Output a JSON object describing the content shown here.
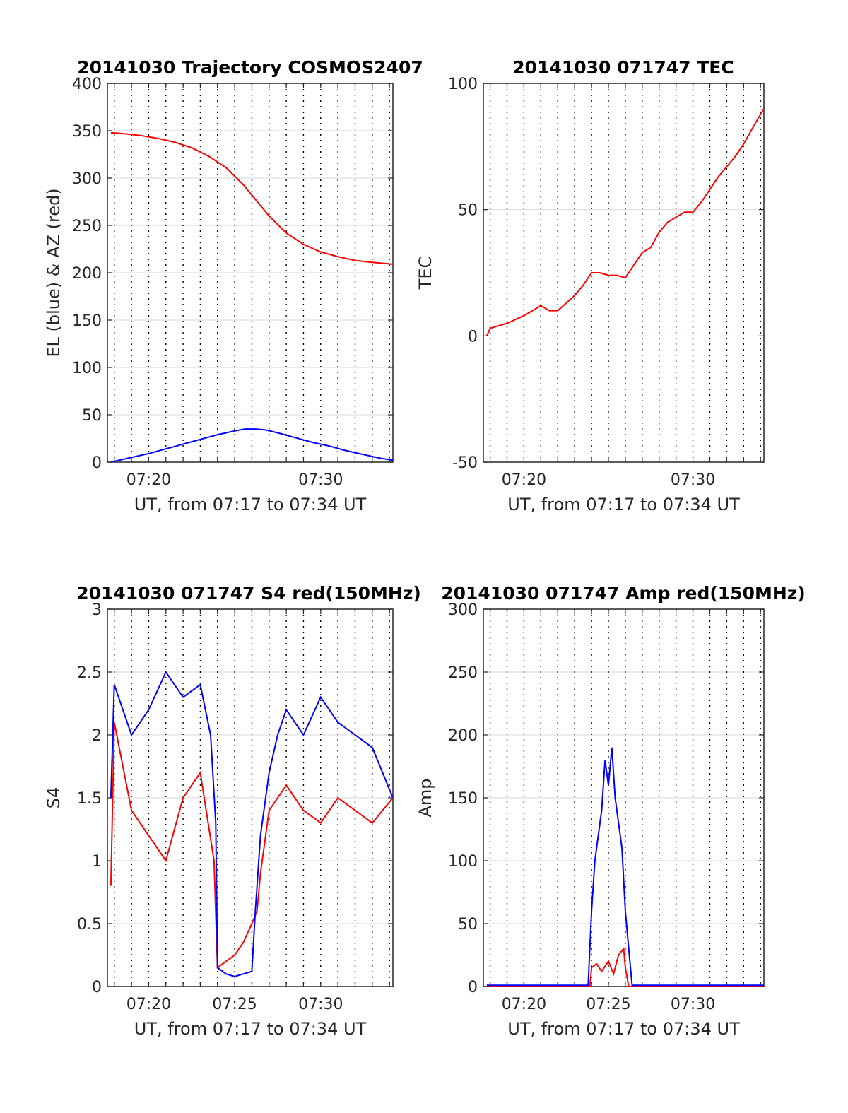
{
  "figure": {
    "background": "#ffffff"
  },
  "colors": {
    "red": "#ff0000",
    "blue": "#0000ff",
    "grid_dotted": "#000000",
    "grid_solid": "#d9d9d9",
    "axes": "#262626"
  },
  "chart_data": [
    {
      "id": "trajectory",
      "type": "line",
      "title": "20141030 Trajectory COSMOS2407",
      "xlabel": "UT, from 07:17 to 07:34 UT",
      "ylabel": "EL (blue) & AZ (red)",
      "xlim": [
        17.6,
        34.2
      ],
      "ylim": [
        0,
        400
      ],
      "yticks": [
        0,
        50,
        100,
        150,
        200,
        250,
        300,
        350,
        400
      ],
      "ytick_labels": [
        "0",
        "50",
        "100",
        "150",
        "200",
        "250",
        "300",
        "350",
        "400"
      ],
      "xticks": [
        20,
        30
      ],
      "xtick_labels": [
        "07:20",
        "07:30"
      ],
      "grid": "dotted vertical every minute, horizontal at y ticks",
      "series": [
        {
          "color": "#ff0000",
          "x": [
            17.8,
            18.5,
            19.5,
            20.5,
            21.5,
            22.5,
            23.5,
            24.5,
            25.5,
            26.0,
            26.5,
            27.0,
            28.0,
            29.0,
            30.0,
            31.0,
            32.0,
            33.0,
            34.2
          ],
          "y": [
            348,
            347,
            345,
            342,
            338,
            332,
            323,
            311,
            293,
            282,
            271,
            260,
            242,
            230,
            222,
            217,
            213,
            211,
            209
          ]
        },
        {
          "color": "#0000ff",
          "x": [
            17.8,
            19.0,
            20.0,
            21.0,
            22.0,
            23.0,
            24.0,
            25.0,
            25.6,
            26.2,
            26.8,
            27.5,
            28.5,
            29.5,
            30.5,
            31.5,
            32.5,
            33.5,
            34.2
          ],
          "y": [
            0,
            5,
            9,
            14,
            19,
            24,
            29,
            33,
            35,
            35,
            34,
            31,
            26,
            21,
            17,
            12,
            8,
            4,
            2
          ]
        }
      ]
    },
    {
      "id": "tec",
      "type": "line",
      "title": "20141030 071747 TEC",
      "xlabel": "UT, from 07:17 to 07:34 UT",
      "ylabel": "TEC",
      "xlim": [
        17.6,
        34.2
      ],
      "ylim": [
        -50,
        100
      ],
      "yticks": [
        -50,
        0,
        50,
        100
      ],
      "ytick_labels": [
        "-50",
        "0",
        "50",
        "100"
      ],
      "xticks": [
        20,
        30
      ],
      "xtick_labels": [
        "07:20",
        "07:30"
      ],
      "grid": "dotted vertical every minute, horizontal at y ticks",
      "series": [
        {
          "color": "#ff0000",
          "x": [
            17.8,
            18.0,
            19.0,
            20.0,
            20.5,
            21.0,
            21.5,
            22.0,
            22.5,
            23.0,
            23.5,
            24.0,
            24.5,
            25.0,
            25.5,
            26.0,
            26.5,
            27.0,
            27.5,
            28.0,
            28.5,
            29.0,
            29.5,
            30.0,
            30.5,
            31.0,
            31.5,
            32.0,
            32.5,
            33.0,
            33.5,
            34.2
          ],
          "y": [
            0,
            3,
            5,
            8,
            10,
            12,
            10,
            10,
            13,
            16,
            20,
            25,
            25,
            24,
            24,
            23,
            28,
            33,
            35,
            41,
            45,
            47,
            49,
            49,
            53,
            58,
            63,
            67,
            71,
            76,
            82,
            90
          ]
        }
      ]
    },
    {
      "id": "s4",
      "type": "line",
      "title": "20141030 071747 S4 red(150MHz)",
      "xlabel": "UT, from 07:17 to 07:34 UT",
      "ylabel": "S4",
      "xlim": [
        17.6,
        34.2
      ],
      "ylim": [
        0,
        3
      ],
      "yticks": [
        0,
        0.5,
        1,
        1.5,
        2,
        2.5,
        3
      ],
      "ytick_labels": [
        "0",
        "0.5",
        "1",
        "1.5",
        "2",
        "2.5",
        "3"
      ],
      "xticks": [
        20,
        25,
        30
      ],
      "xtick_labels": [
        "07:20",
        "07:25",
        "07:30"
      ],
      "grid": "dotted vertical every minute, horizontal at y ticks",
      "series": [
        {
          "color": "#ff0000",
          "x": [
            17.8,
            18.0,
            19.0,
            20.0,
            21.0,
            22.0,
            23.0,
            23.8,
            24.0,
            24.5,
            25.0,
            25.5,
            26.0,
            26.3,
            26.5,
            27.0,
            27.5,
            28.0,
            28.5,
            29.0,
            30.0,
            31.0,
            32.0,
            33.0,
            34.2
          ],
          "y": [
            0.8,
            2.1,
            1.4,
            1.2,
            1.0,
            1.5,
            1.7,
            1.0,
            0.15,
            0.2,
            0.25,
            0.35,
            0.5,
            0.6,
            0.9,
            1.4,
            1.5,
            1.6,
            1.5,
            1.4,
            1.3,
            1.5,
            1.4,
            1.3,
            1.5
          ]
        },
        {
          "color": "#0000ff",
          "x": [
            17.8,
            18.0,
            19.0,
            20.0,
            21.0,
            22.0,
            23.0,
            23.6,
            23.9,
            24.0,
            24.5,
            25.0,
            25.5,
            26.0,
            26.2,
            26.5,
            27.0,
            27.5,
            28.0,
            29.0,
            30.0,
            31.0,
            32.0,
            33.0,
            34.2
          ],
          "y": [
            1.5,
            2.4,
            2.0,
            2.2,
            2.5,
            2.3,
            2.4,
            2.0,
            1.3,
            0.15,
            0.1,
            0.08,
            0.1,
            0.12,
            0.6,
            1.2,
            1.7,
            2.0,
            2.2,
            2.0,
            2.3,
            2.1,
            2.0,
            1.9,
            1.5
          ]
        }
      ]
    },
    {
      "id": "amp",
      "type": "line",
      "title": "20141030 071747 Amp red(150MHz)",
      "xlabel": "UT, from 07:17 to 07:34 UT",
      "ylabel": "Amp",
      "xlim": [
        17.6,
        34.2
      ],
      "ylim": [
        0,
        300
      ],
      "yticks": [
        0,
        50,
        100,
        150,
        200,
        250,
        300
      ],
      "ytick_labels": [
        "0",
        "50",
        "100",
        "150",
        "200",
        "250",
        "300"
      ],
      "xticks": [
        20,
        25,
        30
      ],
      "xtick_labels": [
        "07:20",
        "07:25",
        "07:30"
      ],
      "grid": "dotted vertical every minute, horizontal at y ticks",
      "series": [
        {
          "color": "#ff0000",
          "x": [
            17.8,
            20.0,
            23.0,
            23.9,
            24.0,
            24.3,
            24.6,
            25.0,
            25.3,
            25.6,
            25.9,
            26.0,
            26.2,
            30.0,
            34.2
          ],
          "y": [
            0,
            0,
            0,
            0,
            15,
            18,
            12,
            20,
            10,
            25,
            30,
            15,
            0,
            0,
            0
          ]
        },
        {
          "color": "#0000ff",
          "x": [
            17.8,
            20.0,
            23.0,
            23.8,
            24.0,
            24.2,
            24.4,
            24.6,
            24.8,
            25.0,
            25.2,
            25.4,
            25.6,
            25.8,
            26.0,
            26.2,
            26.4,
            30.0,
            34.2
          ],
          "y": [
            1,
            1,
            1,
            1,
            60,
            100,
            120,
            140,
            180,
            160,
            190,
            150,
            130,
            110,
            60,
            30,
            1,
            1,
            1
          ]
        }
      ]
    }
  ]
}
